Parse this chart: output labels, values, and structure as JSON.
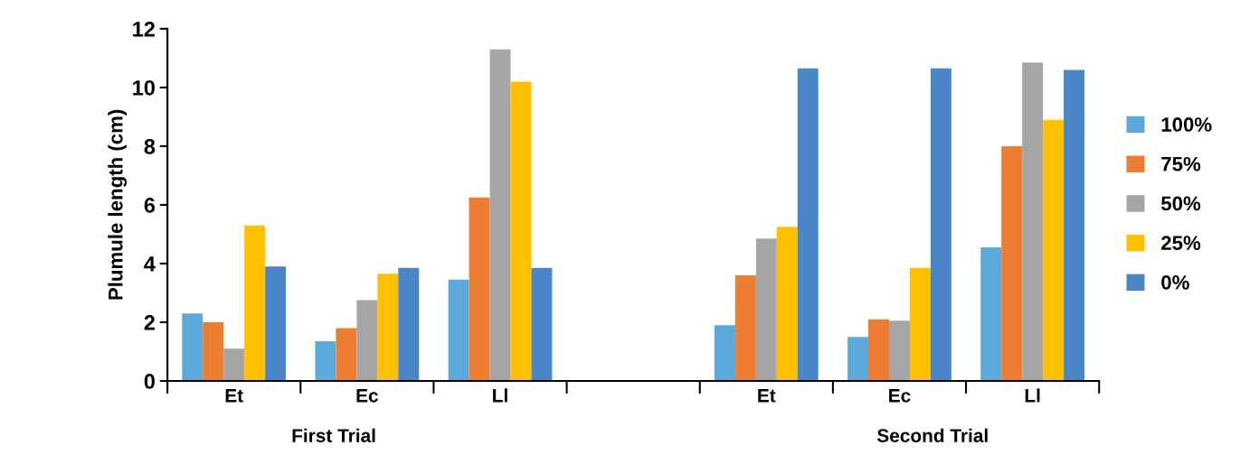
{
  "chart_data": {
    "type": "bar",
    "ylabel": "Plumule length (cm)",
    "categories": [
      "Et",
      "Ec",
      "Ll",
      null,
      "Et",
      "Ec",
      "Ll"
    ],
    "series": [
      {
        "name": "100%",
        "color": "#5ea9dc",
        "values": [
          2.3,
          1.35,
          3.45,
          null,
          1.9,
          1.5,
          4.55
        ]
      },
      {
        "name": "75%",
        "color": "#ed7d31",
        "values": [
          2.0,
          1.8,
          6.25,
          null,
          3.6,
          2.1,
          8.0
        ]
      },
      {
        "name": "50%",
        "color": "#a5a5a5",
        "values": [
          1.1,
          2.75,
          11.3,
          null,
          4.85,
          2.05,
          10.85
        ]
      },
      {
        "name": "25%",
        "color": "#ffc000",
        "values": [
          5.3,
          3.65,
          10.2,
          null,
          5.25,
          3.85,
          8.9
        ]
      },
      {
        "name": "0%",
        "color": "#4a86c8",
        "values": [
          3.9,
          3.85,
          3.85,
          null,
          10.65,
          10.65,
          10.6
        ]
      }
    ],
    "ylim": [
      0,
      12
    ],
    "yticks": [
      0,
      2,
      4,
      6,
      8,
      10,
      12
    ],
    "grid": false,
    "legend": "right",
    "annotations": [
      "First Trial",
      "Second Trial"
    ]
  }
}
